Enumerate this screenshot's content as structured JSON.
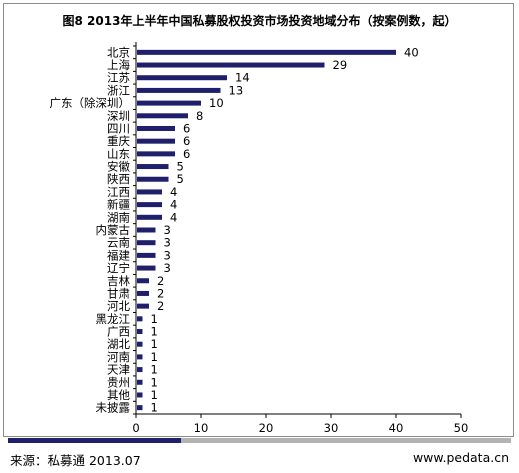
{
  "chart_data": {
    "type": "bar",
    "orientation": "horizontal",
    "title": "图8 2013年上半年中国私募股权投资市场投资地域分布（按案例数，起）",
    "categories": [
      "北京",
      "上海",
      "江苏",
      "浙江",
      "广东（除深圳）",
      "深圳",
      "四川",
      "重庆",
      "山东",
      "安徽",
      "陕西",
      "江西",
      "新疆",
      "湖南",
      "内蒙古",
      "云南",
      "福建",
      "辽宁",
      "吉林",
      "甘肃",
      "河北",
      "黑龙江",
      "广西",
      "湖北",
      "河南",
      "天津",
      "贵州",
      "其他",
      "未披露"
    ],
    "values": [
      40,
      29,
      14,
      13,
      10,
      8,
      6,
      6,
      6,
      5,
      5,
      4,
      4,
      4,
      3,
      3,
      3,
      3,
      2,
      2,
      2,
      1,
      1,
      1,
      1,
      1,
      1,
      1,
      1
    ],
    "xlim": [
      0,
      50
    ],
    "xticks": [
      0,
      10,
      20,
      30,
      40,
      50
    ],
    "xlabel": "",
    "ylabel": "",
    "grid": false,
    "legend": "none",
    "bar_color": "#1f1f6b"
  },
  "footer": {
    "source": "来源：私募通  2013.07",
    "site": "www.pedata.cn",
    "accent_color": "#1f1f6b"
  }
}
